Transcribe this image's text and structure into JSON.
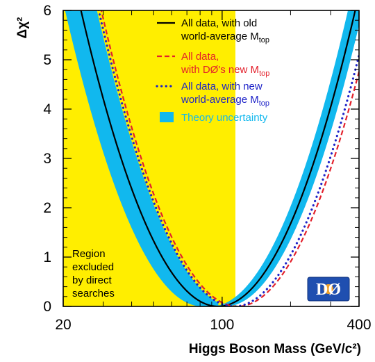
{
  "chart_data": {
    "type": "line",
    "x_scale": "log",
    "xlim": [
      20,
      400
    ],
    "ylim": [
      0,
      6
    ],
    "x_ticks": [
      "20",
      "100",
      "400"
    ],
    "y_ticks": [
      "0",
      "1",
      "2",
      "3",
      "4",
      "5",
      "6"
    ],
    "ylabel": "Δχ²",
    "xlabel": "Higgs Boson Mass  (GeV/c²)",
    "grid": false,
    "legend_position": "top-right",
    "excluded_region": {
      "x_range": [
        20,
        114.4
      ],
      "color": "#ffee00",
      "lines": [
        "Region",
        "excluded",
        "by direct",
        "searches"
      ]
    },
    "theory_band": {
      "name": "Theory uncertainty",
      "color": "#11b8ee",
      "min_x": 96,
      "left_half_width": 0.07,
      "right_half_width": 0.032
    },
    "series": [
      {
        "name_main": "All data, with old",
        "name_line2": "world-average M",
        "name_sub": "top",
        "color": "#000000",
        "style": "solid",
        "min_x": 96,
        "k": 16.5
      },
      {
        "name_main": "All data,",
        "name_line2": "with DØ's new M",
        "name_sub": "top",
        "color": "#e3202b",
        "style": "dashed",
        "min_x": 117,
        "k": 16.7
      },
      {
        "name_main": "All data, with new",
        "name_line2": "world-average M",
        "name_sub": "top",
        "color": "#1d22c8",
        "style": "dotted",
        "min_x": 113,
        "k": 16.9
      }
    ],
    "logo": "DØ"
  }
}
